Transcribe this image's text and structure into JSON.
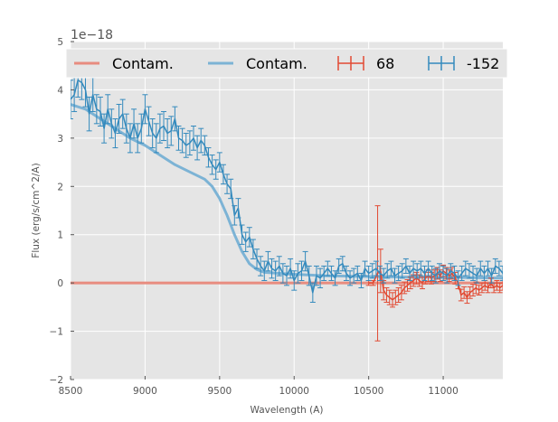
{
  "chart_data": {
    "type": "line",
    "title": "",
    "xlabel": "Wavelength (A)",
    "ylabel": "Flux (erg/s/cm^2/A)",
    "y_offset_text": "1e−18",
    "y_scale": 1e-18,
    "xlim": [
      8500,
      11400
    ],
    "ylim": [
      -2,
      5
    ],
    "xticks": [
      8500,
      9000,
      9500,
      10000,
      10500,
      11000
    ],
    "xtick_labels": [
      "8500",
      "9000",
      "9500",
      "10000",
      "10500",
      "11000"
    ],
    "yticks": [
      -2,
      -1,
      0,
      1,
      2,
      3,
      4,
      5
    ],
    "ytick_labels": [
      "−2",
      "−1",
      "0",
      "1",
      "2",
      "3",
      "4",
      "5"
    ],
    "grid": true,
    "legend_position": "top",
    "colors": {
      "axes_bg": "#e5e5e5",
      "grid": "#ffffff",
      "red": "#e24a33",
      "blue": "#348abd",
      "contam_red": "#e88c7f",
      "contam_blue": "#7cb3d5"
    },
    "legend": [
      {
        "label": "Contam.",
        "kind": "line",
        "color": "#e88c7f"
      },
      {
        "label": "Contam.",
        "kind": "line",
        "color": "#7cb3d5"
      },
      {
        "label": "68",
        "kind": "errorbar",
        "color": "#e24a33"
      },
      {
        "label": "-152",
        "kind": "errorbar",
        "color": "#348abd"
      }
    ],
    "series": [
      {
        "name": "Contam.",
        "kind": "line",
        "color": "#e88c7f",
        "x": [
          8500,
          10540,
          10570,
          10800,
          11000,
          11400
        ],
        "y": [
          0,
          0,
          0,
          0,
          0,
          0
        ]
      },
      {
        "name": "Contam.",
        "kind": "line",
        "color": "#7cb3d5",
        "x": [
          8500,
          8600,
          8700,
          8800,
          8900,
          9000,
          9100,
          9200,
          9300,
          9400,
          9450,
          9500,
          9550,
          9600,
          9650,
          9700,
          9750,
          9800,
          9900,
          10000,
          10200,
          10400,
          10600,
          10800,
          11000,
          11200,
          11400
        ],
        "y": [
          3.7,
          3.6,
          3.4,
          3.2,
          3.0,
          2.85,
          2.65,
          2.45,
          2.3,
          2.15,
          2.0,
          1.75,
          1.4,
          1.0,
          0.65,
          0.4,
          0.28,
          0.22,
          0.2,
          0.18,
          0.15,
          0.14,
          0.13,
          0.12,
          0.12,
          0.11,
          0.1
        ]
      },
      {
        "name": "68",
        "kind": "errorbar",
        "color": "#e24a33",
        "x": [
          10500,
          10530,
          10560,
          10580,
          10600,
          10620,
          10640,
          10660,
          10680,
          10700,
          10720,
          10740,
          10760,
          10780,
          10800,
          10820,
          10840,
          10860,
          10880,
          10900,
          10920,
          10940,
          10960,
          10980,
          11000,
          11020,
          11040,
          11060,
          11080,
          11100,
          11120,
          11140,
          11160,
          11180,
          11200,
          11220,
          11240,
          11260,
          11280,
          11300,
          11320,
          11340,
          11360,
          11380,
          11400
        ],
        "y": [
          0.0,
          0.0,
          0.2,
          0.25,
          -0.15,
          -0.25,
          -0.3,
          -0.35,
          -0.3,
          -0.25,
          -0.2,
          -0.1,
          -0.05,
          0.0,
          0.05,
          0.1,
          0.05,
          0.0,
          0.1,
          0.15,
          0.1,
          0.15,
          0.2,
          0.15,
          0.25,
          0.2,
          0.15,
          0.2,
          0.1,
          0.0,
          -0.25,
          -0.2,
          -0.3,
          -0.2,
          -0.15,
          -0.1,
          -0.15,
          -0.1,
          -0.05,
          -0.1,
          0.0,
          -0.1,
          -0.05,
          -0.1,
          -0.05
        ],
        "err": [
          0.05,
          0.05,
          1.4,
          0.45,
          0.2,
          0.15,
          0.15,
          0.15,
          0.15,
          0.15,
          0.15,
          0.12,
          0.12,
          0.12,
          0.12,
          0.12,
          0.12,
          0.12,
          0.12,
          0.12,
          0.12,
          0.12,
          0.12,
          0.12,
          0.12,
          0.12,
          0.12,
          0.12,
          0.12,
          0.12,
          0.12,
          0.12,
          0.12,
          0.12,
          0.12,
          0.12,
          0.1,
          0.1,
          0.1,
          0.1,
          0.1,
          0.1,
          0.1,
          0.1,
          0.1
        ]
      },
      {
        "name": "-152",
        "kind": "errorbar",
        "color": "#348abd",
        "x": [
          8500,
          8525,
          8550,
          8575,
          8600,
          8625,
          8650,
          8675,
          8700,
          8725,
          8750,
          8775,
          8800,
          8825,
          8850,
          8875,
          8900,
          8925,
          8950,
          8975,
          9000,
          9025,
          9050,
          9075,
          9100,
          9125,
          9150,
          9175,
          9200,
          9225,
          9250,
          9275,
          9300,
          9325,
          9350,
          9375,
          9400,
          9425,
          9450,
          9475,
          9500,
          9525,
          9550,
          9575,
          9600,
          9625,
          9650,
          9675,
          9700,
          9725,
          9750,
          9775,
          9800,
          9825,
          9850,
          9875,
          9900,
          9925,
          9950,
          9975,
          10000,
          10025,
          10050,
          10075,
          10100,
          10125,
          10150,
          10175,
          10200,
          10225,
          10250,
          10275,
          10300,
          10325,
          10350,
          10375,
          10400,
          10425,
          10450,
          10475,
          10500,
          10525,
          10550,
          10575,
          10600,
          10625,
          10650,
          10675,
          10700,
          10725,
          10750,
          10775,
          10800,
          10825,
          10850,
          10875,
          10900,
          10925,
          10950,
          10975,
          11000,
          11025,
          11050,
          11075,
          11100,
          11125,
          11150,
          11175,
          11200,
          11225,
          11250,
          11275,
          11300,
          11325,
          11350,
          11375,
          11400
        ],
        "y": [
          3.8,
          3.9,
          4.2,
          4.15,
          4.0,
          3.5,
          3.9,
          3.6,
          3.55,
          3.2,
          3.6,
          3.3,
          3.1,
          3.4,
          3.5,
          3.2,
          3.0,
          3.3,
          3.0,
          3.2,
          3.6,
          3.35,
          3.1,
          3.0,
          3.2,
          3.25,
          3.1,
          3.15,
          3.4,
          3.0,
          2.95,
          2.85,
          2.9,
          3.0,
          2.8,
          2.95,
          2.85,
          2.6,
          2.45,
          2.35,
          2.5,
          2.25,
          2.05,
          1.95,
          1.4,
          1.55,
          1.0,
          0.85,
          0.95,
          0.7,
          0.5,
          0.35,
          0.25,
          0.45,
          0.3,
          0.25,
          0.35,
          0.2,
          0.15,
          0.3,
          0.05,
          0.2,
          0.25,
          0.45,
          0.15,
          -0.2,
          0.15,
          0.1,
          0.2,
          0.3,
          0.2,
          0.1,
          0.35,
          0.4,
          0.2,
          0.1,
          0.15,
          0.2,
          0.05,
          0.3,
          0.2,
          0.25,
          0.3,
          0.2,
          0.15,
          0.25,
          0.3,
          0.15,
          0.2,
          0.25,
          0.35,
          0.2,
          0.3,
          0.25,
          0.3,
          0.2,
          0.3,
          0.2,
          0.15,
          0.25,
          0.2,
          0.15,
          0.25,
          0.2,
          0.1,
          0.2,
          0.3,
          0.25,
          0.2,
          0.15,
          0.3,
          0.2,
          0.3,
          0.15,
          0.35,
          0.3,
          0.2
        ],
        "err": [
          0.4,
          0.35,
          0.35,
          0.35,
          0.35,
          0.35,
          0.35,
          0.3,
          0.3,
          0.3,
          0.3,
          0.3,
          0.3,
          0.3,
          0.3,
          0.3,
          0.3,
          0.3,
          0.3,
          0.3,
          0.3,
          0.3,
          0.3,
          0.3,
          0.3,
          0.3,
          0.3,
          0.3,
          0.25,
          0.25,
          0.25,
          0.25,
          0.25,
          0.25,
          0.25,
          0.25,
          0.2,
          0.2,
          0.2,
          0.2,
          0.2,
          0.2,
          0.2,
          0.2,
          0.2,
          0.2,
          0.2,
          0.2,
          0.2,
          0.2,
          0.2,
          0.2,
          0.2,
          0.2,
          0.2,
          0.2,
          0.2,
          0.2,
          0.2,
          0.2,
          0.2,
          0.2,
          0.2,
          0.2,
          0.2,
          0.2,
          0.2,
          0.2,
          0.15,
          0.15,
          0.15,
          0.15,
          0.15,
          0.15,
          0.15,
          0.15,
          0.15,
          0.15,
          0.15,
          0.15,
          0.15,
          0.15,
          0.15,
          0.15,
          0.15,
          0.15,
          0.15,
          0.15,
          0.15,
          0.15,
          0.15,
          0.15,
          0.15,
          0.15,
          0.15,
          0.15,
          0.15,
          0.15,
          0.15,
          0.15,
          0.15,
          0.15,
          0.15,
          0.15,
          0.15,
          0.15,
          0.15,
          0.15,
          0.15,
          0.15,
          0.15,
          0.15,
          0.15,
          0.15,
          0.15,
          0.15,
          0.15
        ]
      }
    ]
  }
}
